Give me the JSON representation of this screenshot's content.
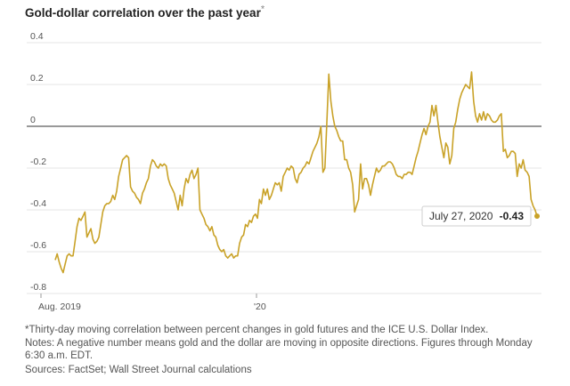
{
  "title": "Gold-dollar correlation over the past year",
  "title_mark": "*",
  "notes": {
    "footnote": "*Thirty-day moving correlation between percent changes in gold futures and the ICE U.S. Dollar Index.",
    "explanation": "Notes: A negative number means gold and the dollar are moving in opposite directions. Figures through Monday 6:30 a.m. EDT.",
    "sources": "Sources: FactSet; Wall Street Journal calculations"
  },
  "callout": {
    "date": "July 27, 2020",
    "value": "-0.43"
  },
  "colors": {
    "line": "#c9a228",
    "grid": "#dcdcdc",
    "zero": "#333333",
    "text": "#555555"
  },
  "chart_data": {
    "type": "line",
    "title": "Gold-dollar correlation over the past year",
    "xlabel": "",
    "ylabel": "",
    "x_ticks": [
      "Aug. 2019",
      "'20"
    ],
    "y_ticks": [
      "0.4",
      "0.2",
      "0",
      "-0.2",
      "-0.4",
      "-0.6",
      "-0.8"
    ],
    "ylim": [
      -0.8,
      0.4
    ],
    "grid": true,
    "series": [
      {
        "values": [
          -0.64,
          -0.61,
          -0.65,
          -0.68,
          -0.7,
          -0.66,
          -0.62,
          -0.61,
          -0.62,
          -0.62,
          -0.55,
          -0.48,
          -0.44,
          -0.45,
          -0.43,
          -0.41,
          -0.53,
          -0.51,
          -0.49,
          -0.54,
          -0.56,
          -0.55,
          -0.53,
          -0.47,
          -0.41,
          -0.38,
          -0.37,
          -0.37,
          -0.36,
          -0.33,
          -0.35,
          -0.31,
          -0.24,
          -0.2,
          -0.16,
          -0.15,
          -0.14,
          -0.15,
          -0.29,
          -0.31,
          -0.32,
          -0.34,
          -0.35,
          -0.37,
          -0.32,
          -0.3,
          -0.27,
          -0.25,
          -0.19,
          -0.16,
          -0.17,
          -0.19,
          -0.2,
          -0.18,
          -0.19,
          -0.18,
          -0.19,
          -0.25,
          -0.28,
          -0.3,
          -0.32,
          -0.36,
          -0.4,
          -0.33,
          -0.38,
          -0.3,
          -0.25,
          -0.27,
          -0.23,
          -0.21,
          -0.25,
          -0.23,
          -0.2,
          -0.4,
          -0.42,
          -0.44,
          -0.47,
          -0.48,
          -0.5,
          -0.48,
          -0.52,
          -0.53,
          -0.57,
          -0.59,
          -0.6,
          -0.59,
          -0.62,
          -0.63,
          -0.62,
          -0.61,
          -0.63,
          -0.62,
          -0.62,
          -0.56,
          -0.53,
          -0.52,
          -0.47,
          -0.48,
          -0.45,
          -0.46,
          -0.43,
          -0.42,
          -0.44,
          -0.35,
          -0.37,
          -0.3,
          -0.33,
          -0.3,
          -0.35,
          -0.33,
          -0.3,
          -0.27,
          -0.28,
          -0.27,
          -0.31,
          -0.24,
          -0.22,
          -0.2,
          -0.21,
          -0.19,
          -0.2,
          -0.25,
          -0.27,
          -0.23,
          -0.22,
          -0.2,
          -0.19,
          -0.17,
          -0.18,
          -0.15,
          -0.12,
          -0.1,
          -0.08,
          -0.05,
          0.0,
          -0.22,
          -0.2,
          0.02,
          0.25,
          0.12,
          0.05,
          0.0,
          -0.02,
          -0.05,
          -0.07,
          -0.07,
          -0.16,
          -0.16,
          -0.2,
          -0.22,
          -0.28,
          -0.41,
          -0.38,
          -0.35,
          -0.18,
          -0.3,
          -0.25,
          -0.25,
          -0.28,
          -0.33,
          -0.28,
          -0.24,
          -0.2,
          -0.22,
          -0.21,
          -0.19,
          -0.19,
          -0.18,
          -0.17,
          -0.17,
          -0.18,
          -0.2,
          -0.23,
          -0.24,
          -0.24,
          -0.25,
          -0.23,
          -0.23,
          -0.22,
          -0.22,
          -0.23,
          -0.19,
          -0.15,
          -0.12,
          -0.08,
          -0.04,
          -0.01,
          -0.04,
          0.0,
          0.02,
          0.1,
          0.05,
          0.1,
          0.02,
          -0.05,
          -0.1,
          -0.15,
          -0.08,
          -0.1,
          -0.18,
          -0.14,
          -0.01,
          0.02,
          0.08,
          0.13,
          0.16,
          0.18,
          0.2,
          0.19,
          0.18,
          0.26,
          0.12,
          0.05,
          0.02,
          0.06,
          0.03,
          0.07,
          0.03,
          0.06,
          0.05,
          0.03,
          0.02,
          0.02,
          0.03,
          0.05,
          0.06,
          -0.12,
          -0.11,
          -0.15,
          -0.14,
          -0.12,
          -0.12,
          -0.13,
          -0.24,
          -0.18,
          -0.2,
          -0.16,
          -0.21,
          -0.22,
          -0.24,
          -0.35,
          -0.38,
          -0.4,
          -0.43
        ]
      }
    ]
  }
}
